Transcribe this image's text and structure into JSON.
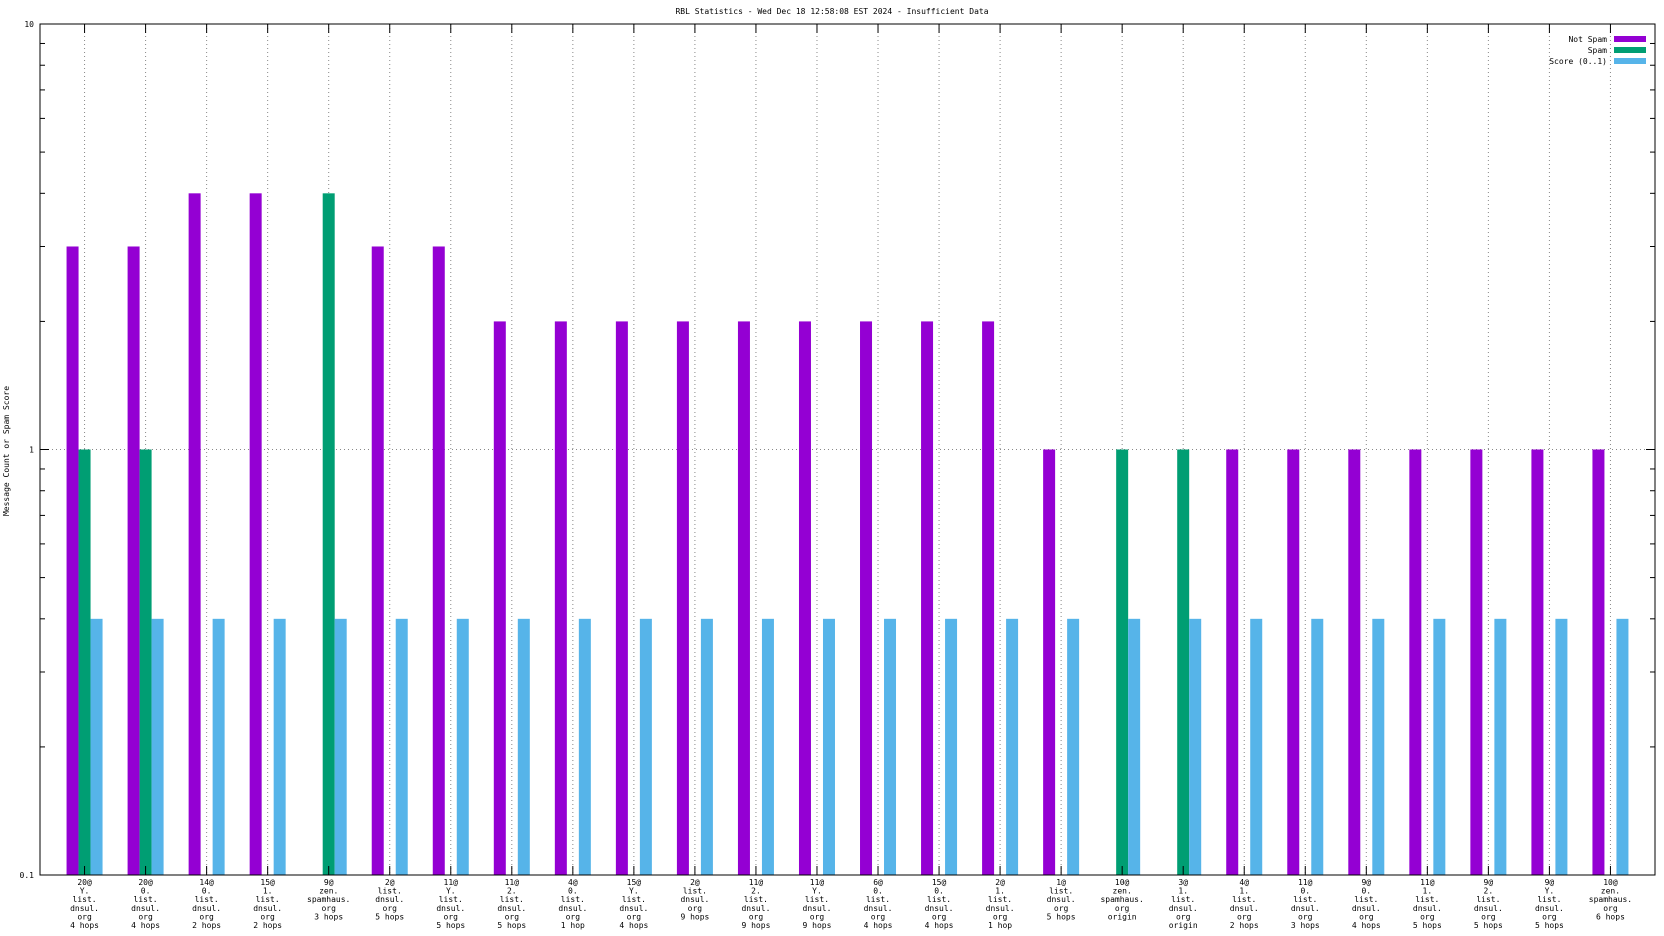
{
  "chart_data": {
    "type": "bar",
    "title": "RBL Statistics - Wed Dec 18 12:58:08 EST 2024 - Insufficient Data",
    "xlabel": "",
    "ylabel": "Message Count or Spam Score",
    "yscale": "log",
    "ylim": [
      0.1,
      10
    ],
    "y_ticks": [
      "0.1",
      "1",
      "10"
    ],
    "grid": true,
    "legend_position": "top-right",
    "categories": [
      [
        "20@",
        "Y.",
        "list.",
        "dnsul.",
        "org",
        "4 hops"
      ],
      [
        "20@",
        "0.",
        "list.",
        "dnsul.",
        "org",
        "4 hops"
      ],
      [
        "14@",
        "0.",
        "list.",
        "dnsul.",
        "org",
        "2 hops"
      ],
      [
        "15@",
        "1.",
        "list.",
        "dnsul.",
        "org",
        "2 hops"
      ],
      [
        "9@",
        "zen.",
        "spamhaus.",
        "org",
        "3 hops"
      ],
      [
        "2@",
        "list.",
        "dnsul.",
        "org",
        "5 hops"
      ],
      [
        "11@",
        "Y.",
        "list.",
        "dnsul.",
        "org",
        "5 hops"
      ],
      [
        "11@",
        "2.",
        "list.",
        "dnsul.",
        "org",
        "5 hops"
      ],
      [
        "4@",
        "0.",
        "list.",
        "dnsul.",
        "org",
        "1 hop"
      ],
      [
        "15@",
        "Y.",
        "list.",
        "dnsul.",
        "org",
        "4 hops"
      ],
      [
        "2@",
        "list.",
        "dnsul.",
        "org",
        "9 hops"
      ],
      [
        "11@",
        "2.",
        "list.",
        "dnsul.",
        "org",
        "9 hops"
      ],
      [
        "11@",
        "Y.",
        "list.",
        "dnsul.",
        "org",
        "9 hops"
      ],
      [
        "6@",
        "0.",
        "list.",
        "dnsul.",
        "org",
        "4 hops"
      ],
      [
        "15@",
        "0.",
        "list.",
        "dnsul.",
        "org",
        "4 hops"
      ],
      [
        "2@",
        "1.",
        "list.",
        "dnsul.",
        "org",
        "1 hop"
      ],
      [
        "1@",
        "list.",
        "dnsul.",
        "org",
        "5 hops"
      ],
      [
        "10@",
        "zen.",
        "spamhaus.",
        "org",
        "origin"
      ],
      [
        "3@",
        "1.",
        "list.",
        "dnsul.",
        "org",
        "origin"
      ],
      [
        "4@",
        "1.",
        "list.",
        "dnsul.",
        "org",
        "2 hops"
      ],
      [
        "11@",
        "0.",
        "list.",
        "dnsul.",
        "org",
        "3 hops"
      ],
      [
        "9@",
        "0.",
        "list.",
        "dnsul.",
        "org",
        "4 hops"
      ],
      [
        "11@",
        "1.",
        "list.",
        "dnsul.",
        "org",
        "5 hops"
      ],
      [
        "9@",
        "2.",
        "list.",
        "dnsul.",
        "org",
        "5 hops"
      ],
      [
        "9@",
        "Y.",
        "list.",
        "dnsul.",
        "org",
        "5 hops"
      ],
      [
        "10@",
        "zen.",
        "spamhaus.",
        "org",
        "6 hops"
      ]
    ],
    "series": [
      {
        "name": "Not Spam",
        "color": "#9400d3",
        "values": [
          3,
          3,
          4,
          4,
          0,
          3,
          3,
          2,
          2,
          2,
          2,
          2,
          2,
          2,
          2,
          2,
          1,
          0,
          0,
          1,
          1,
          1,
          1,
          1,
          1,
          1
        ]
      },
      {
        "name": "Spam",
        "color": "#009e73",
        "values": [
          1,
          1,
          0,
          0,
          4,
          0,
          0,
          0,
          0,
          0,
          0,
          0,
          0,
          0,
          0,
          0,
          0,
          1,
          1,
          0,
          0,
          0,
          0,
          0,
          0,
          0
        ]
      },
      {
        "name": "Score (0..1)",
        "color": "#56b4e9",
        "values": [
          0.4,
          0.4,
          0.4,
          0.4,
          0.4,
          0.4,
          0.4,
          0.4,
          0.4,
          0.4,
          0.4,
          0.4,
          0.4,
          0.4,
          0.4,
          0.4,
          0.4,
          0.4,
          0.4,
          0.4,
          0.4,
          0.4,
          0.4,
          0.4,
          0.4,
          0.4
        ]
      }
    ]
  }
}
